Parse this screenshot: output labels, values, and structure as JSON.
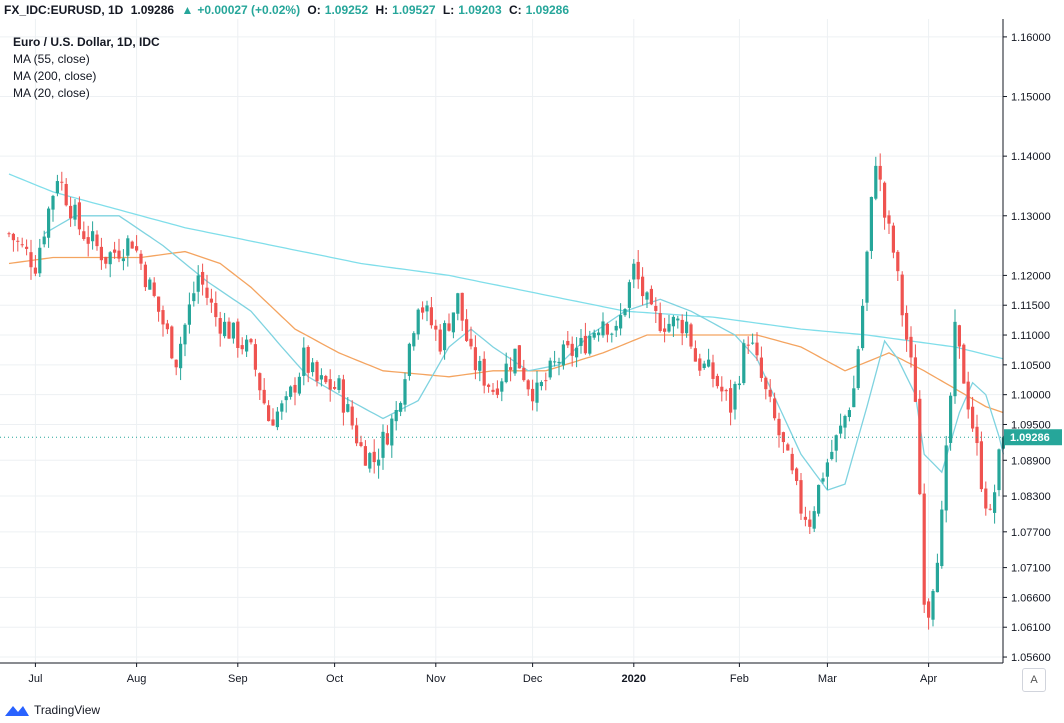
{
  "header": {
    "symbol": "FX_IDC:EURUSD, 1D",
    "last": "1.09286",
    "change_arrow": "▲",
    "change": "+0.00027 (+0.02%)",
    "o_label": "O:",
    "o_value": "1.09252",
    "h_label": "H:",
    "h_value": "1.09527",
    "l_label": "L:",
    "l_value": "1.09203",
    "c_label": "C:",
    "c_value": "1.09286"
  },
  "legend": {
    "title": "Euro / U.S. Dollar, 1D, IDC",
    "ma55": "MA (55, close)",
    "ma200": "MA (200, close)",
    "ma20": "MA (20, close)"
  },
  "footer": {
    "brand": "TradingView",
    "auto_button": "A"
  },
  "colors": {
    "up": "#26a69a",
    "down": "#ef5350",
    "ma55": "#f4a460",
    "ma200": "#80deea",
    "ma20": "#7fd3e0",
    "price_label": "#26a69a"
  },
  "chart_data": {
    "type": "candlestick",
    "symbol": "EURUSD",
    "interval": "1D",
    "y_ticks": [
      "1.16000",
      "1.15000",
      "1.14000",
      "1.13000",
      "1.12000",
      "1.11500",
      "1.11000",
      "1.10500",
      "1.10000",
      "1.09500",
      "1.08900",
      "1.08300",
      "1.07700",
      "1.07100",
      "1.06600",
      "1.06100",
      "1.05600"
    ],
    "ylim": [
      1.055,
      1.163
    ],
    "x_ticks": [
      {
        "label": "Jul",
        "day": 6
      },
      {
        "label": "Aug",
        "day": 29
      },
      {
        "label": "Sep",
        "day": 52
      },
      {
        "label": "Oct",
        "day": 74
      },
      {
        "label": "Nov",
        "day": 97
      },
      {
        "label": "Dec",
        "day": 119
      },
      {
        "label": "2020",
        "day": 142,
        "bold": true
      },
      {
        "label": "Feb",
        "day": 166
      },
      {
        "label": "Mar",
        "day": 186
      },
      {
        "label": "Apr",
        "day": 209
      }
    ],
    "last_price": "1.09286",
    "last_price_value": 1.09286,
    "keypoints": [
      [
        0,
        1.127
      ],
      [
        6,
        1.122
      ],
      [
        11,
        1.137
      ],
      [
        16,
        1.128
      ],
      [
        22,
        1.123
      ],
      [
        28,
        1.126
      ],
      [
        32,
        1.118
      ],
      [
        38,
        1.106
      ],
      [
        43,
        1.12
      ],
      [
        47,
        1.113
      ],
      [
        55,
        1.107
      ],
      [
        59,
        1.096
      ],
      [
        63,
        1.098
      ],
      [
        67,
        1.106
      ],
      [
        70,
        1.102
      ],
      [
        75,
        1.101
      ],
      [
        80,
        1.091
      ],
      [
        83,
        1.089
      ],
      [
        88,
        1.097
      ],
      [
        93,
        1.116
      ],
      [
        98,
        1.109
      ],
      [
        102,
        1.116
      ],
      [
        105,
        1.106
      ],
      [
        110,
        1.101
      ],
      [
        115,
        1.107
      ],
      [
        118,
        1.102
      ],
      [
        120,
        1.1
      ],
      [
        125,
        1.106
      ],
      [
        130,
        1.108
      ],
      [
        135,
        1.113
      ],
      [
        138,
        1.11
      ],
      [
        142,
        1.121
      ],
      [
        146,
        1.113
      ],
      [
        150,
        1.112
      ],
      [
        154,
        1.112
      ],
      [
        156,
        1.106
      ],
      [
        160,
        1.103
      ],
      [
        164,
        1.098
      ],
      [
        168,
        1.11
      ],
      [
        172,
        1.1
      ],
      [
        176,
        1.091
      ],
      [
        180,
        1.081
      ],
      [
        182,
        1.079
      ],
      [
        185,
        1.087
      ],
      [
        189,
        1.094
      ],
      [
        192,
        1.101
      ],
      [
        194,
        1.115
      ],
      [
        197,
        1.14
      ],
      [
        199,
        1.13
      ],
      [
        201,
        1.124
      ],
      [
        203,
        1.114
      ],
      [
        206,
        1.1
      ],
      [
        208,
        1.067
      ],
      [
        209,
        1.064
      ],
      [
        212,
        1.079
      ],
      [
        215,
        1.11
      ],
      [
        217,
        1.103
      ],
      [
        219,
        1.095
      ],
      [
        221,
        1.086
      ],
      [
        223,
        1.079
      ],
      [
        225,
        1.089
      ],
      [
        226,
        1.093
      ]
    ],
    "ma_keypoints": {
      "ma55": [
        [
          0,
          1.122
        ],
        [
          10,
          1.123
        ],
        [
          30,
          1.123
        ],
        [
          40,
          1.124
        ],
        [
          48,
          1.122
        ],
        [
          55,
          1.118
        ],
        [
          65,
          1.111
        ],
        [
          75,
          1.107
        ],
        [
          85,
          1.104
        ],
        [
          100,
          1.103
        ],
        [
          110,
          1.104
        ],
        [
          122,
          1.104
        ],
        [
          135,
          1.107
        ],
        [
          145,
          1.11
        ],
        [
          160,
          1.11
        ],
        [
          170,
          1.11
        ],
        [
          180,
          1.108
        ],
        [
          190,
          1.104
        ],
        [
          200,
          1.107
        ],
        [
          208,
          1.104
        ],
        [
          215,
          1.101
        ],
        [
          222,
          1.098
        ],
        [
          226,
          1.097
        ]
      ],
      "ma200": [
        [
          0,
          1.137
        ],
        [
          10,
          1.134
        ],
        [
          20,
          1.132
        ],
        [
          40,
          1.128
        ],
        [
          60,
          1.125
        ],
        [
          80,
          1.122
        ],
        [
          100,
          1.12
        ],
        [
          120,
          1.117
        ],
        [
          140,
          1.114
        ],
        [
          160,
          1.113
        ],
        [
          180,
          1.111
        ],
        [
          195,
          1.11
        ],
        [
          205,
          1.109
        ],
        [
          215,
          1.108
        ],
        [
          226,
          1.106
        ]
      ],
      "ma20": [
        [
          8,
          1.127
        ],
        [
          15,
          1.13
        ],
        [
          25,
          1.13
        ],
        [
          35,
          1.125
        ],
        [
          45,
          1.119
        ],
        [
          55,
          1.114
        ],
        [
          62,
          1.108
        ],
        [
          68,
          1.103
        ],
        [
          75,
          1.1
        ],
        [
          85,
          1.096
        ],
        [
          93,
          1.099
        ],
        [
          100,
          1.108
        ],
        [
          105,
          1.111
        ],
        [
          110,
          1.108
        ],
        [
          118,
          1.104
        ],
        [
          125,
          1.105
        ],
        [
          132,
          1.11
        ],
        [
          140,
          1.114
        ],
        [
          148,
          1.116
        ],
        [
          155,
          1.114
        ],
        [
          165,
          1.11
        ],
        [
          170,
          1.106
        ],
        [
          175,
          1.098
        ],
        [
          180,
          1.09
        ],
        [
          186,
          1.084
        ],
        [
          190,
          1.085
        ],
        [
          195,
          1.098
        ],
        [
          199,
          1.109
        ],
        [
          202,
          1.106
        ],
        [
          206,
          1.1
        ],
        [
          208,
          1.09
        ],
        [
          212,
          1.087
        ],
        [
          216,
          1.097
        ],
        [
          219,
          1.102
        ],
        [
          222,
          1.1
        ],
        [
          225,
          1.093
        ],
        [
          226,
          1.09
        ]
      ]
    }
  }
}
